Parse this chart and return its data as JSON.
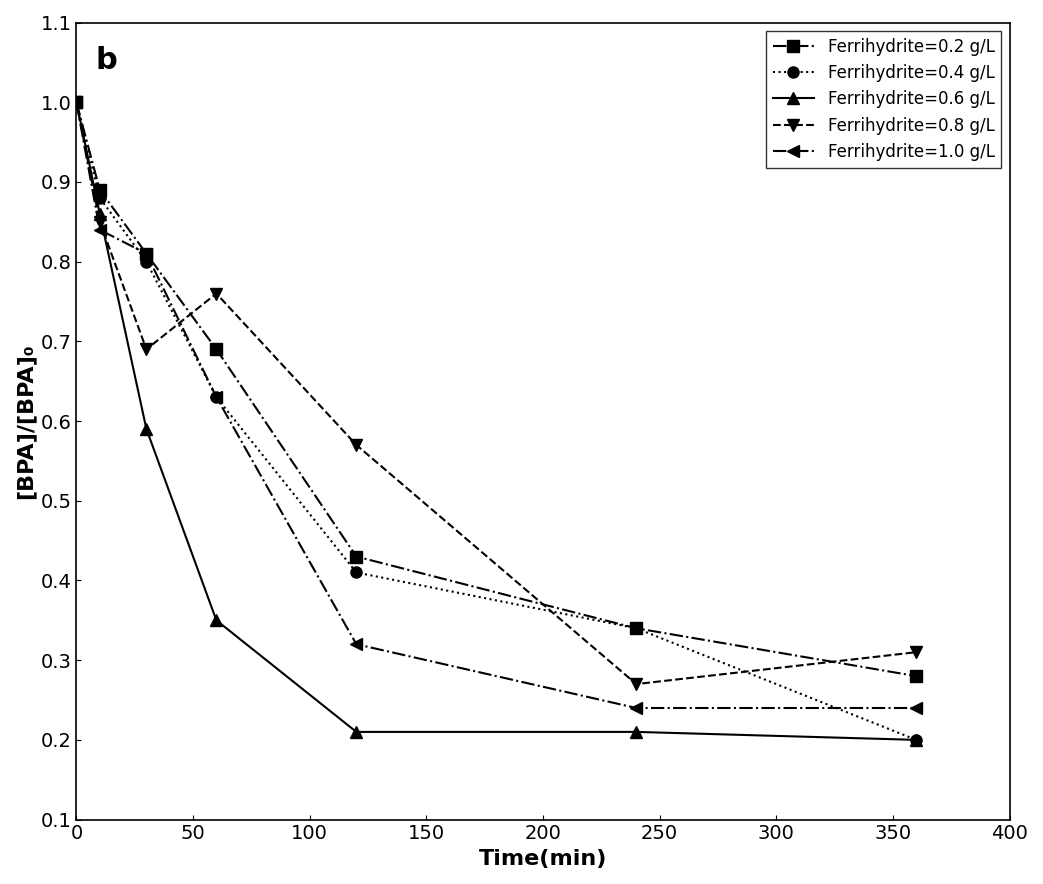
{
  "title_label": "b",
  "xlabel": "Time(min)",
  "ylabel": "[BPA]/[BPA]₀",
  "xlim": [
    0,
    400
  ],
  "ylim": [
    0.1,
    1.1
  ],
  "xticks": [
    0,
    50,
    100,
    150,
    200,
    250,
    300,
    350,
    400
  ],
  "yticks": [
    0.1,
    0.2,
    0.3,
    0.4,
    0.5,
    0.6,
    0.7,
    0.8,
    0.9,
    1.0,
    1.1
  ],
  "series": [
    {
      "label": "Ferrihydrite=0.2 g/L",
      "x": [
        0,
        10,
        30,
        60,
        120,
        240,
        360
      ],
      "y": [
        1.0,
        0.89,
        0.81,
        0.69,
        0.43,
        0.34,
        0.28
      ],
      "marker": "s",
      "linestyle": "-.",
      "color": "#000000",
      "markersize": 8
    },
    {
      "label": "Ferrihydrite=0.4 g/L",
      "x": [
        0,
        10,
        30,
        60,
        120,
        240,
        360
      ],
      "y": [
        1.0,
        0.88,
        0.8,
        0.63,
        0.41,
        0.34,
        0.2
      ],
      "marker": "o",
      "linestyle": ":",
      "color": "#000000",
      "markersize": 8
    },
    {
      "label": "Ferrihydrite=0.6 g/L",
      "x": [
        0,
        10,
        30,
        60,
        120,
        240,
        360
      ],
      "y": [
        1.0,
        0.86,
        0.59,
        0.35,
        0.21,
        0.21,
        0.2
      ],
      "marker": "^",
      "linestyle": "-",
      "color": "#000000",
      "markersize": 8
    },
    {
      "label": "Ferrihydrite=0.8 g/L",
      "x": [
        0,
        10,
        30,
        60,
        120,
        240,
        360
      ],
      "y": [
        1.0,
        0.85,
        0.69,
        0.76,
        0.57,
        0.27,
        0.31
      ],
      "marker": "v",
      "linestyle": "--",
      "color": "#000000",
      "markersize": 8
    },
    {
      "label": "Ferrihydrite=1.0 g/L",
      "x": [
        0,
        10,
        30,
        60,
        120,
        240,
        360
      ],
      "y": [
        1.0,
        0.84,
        0.81,
        0.63,
        0.32,
        0.24,
        0.24
      ],
      "marker": "<",
      "linestyle": "-.",
      "color": "#000000",
      "markersize": 8
    }
  ],
  "background_color": "#ffffff",
  "font_size": 14,
  "label_font_size": 16
}
